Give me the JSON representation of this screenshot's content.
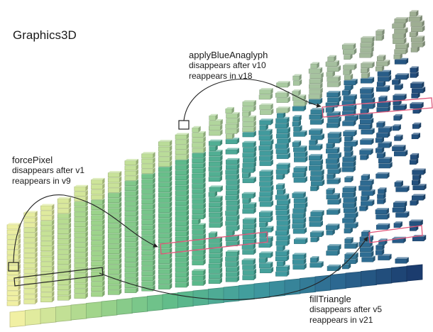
{
  "title": "Graphics3D",
  "annotations": [
    {
      "name": "applyBlueAnaglyph",
      "line1": "disappears after v10",
      "line2": "reappears in v18"
    },
    {
      "name": "forcePixel",
      "line1": "disappears after v1",
      "line2": "reappears in v9"
    },
    {
      "name": "fillTriangle",
      "line1": "disappears after v5",
      "line2": "reappears in v21"
    }
  ],
  "palette": {
    "early": "#f1f0a3",
    "mid": "#9fd48a",
    "late_green": "#5dbb8a",
    "teal": "#3f9a9f",
    "blue": "#2d6a92",
    "navy": "#1b3c6e",
    "highlight": "#e0577a",
    "outline": "#222222"
  }
}
